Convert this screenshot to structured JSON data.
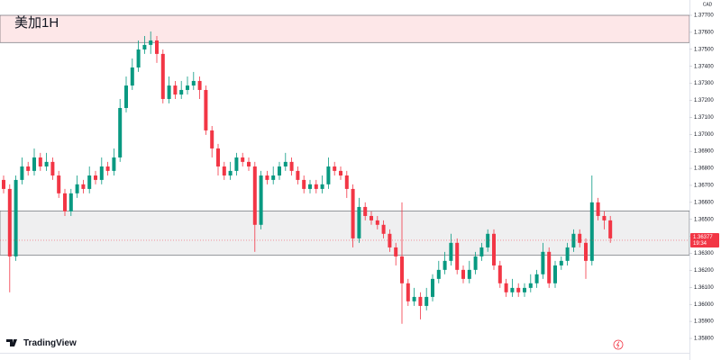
{
  "chart_data": {
    "type": "candlestick",
    "title": "美加1H",
    "brand": "TradingView",
    "currency": "CAD",
    "up_color": "#089981",
    "down_color": "#f23645",
    "ylim": [
      1.35673,
      1.3779
    ],
    "yticks": [
      {
        "value": 1.358,
        "label": "1.35800"
      },
      {
        "value": 1.359,
        "label": "1.35900"
      },
      {
        "value": 1.36,
        "label": "1.36000"
      },
      {
        "value": 1.361,
        "label": "1.36100"
      },
      {
        "value": 1.362,
        "label": "1.36200"
      },
      {
        "value": 1.363,
        "label": "1.36300"
      },
      {
        "value": 1.364,
        "label": "1.36400"
      },
      {
        "value": 1.365,
        "label": "1.36500"
      },
      {
        "value": 1.366,
        "label": "1.36600"
      },
      {
        "value": 1.367,
        "label": "1.36700"
      },
      {
        "value": 1.368,
        "label": "1.36800"
      },
      {
        "value": 1.369,
        "label": "1.36900"
      },
      {
        "value": 1.37,
        "label": "1.37000"
      },
      {
        "value": 1.371,
        "label": "1.37100"
      },
      {
        "value": 1.372,
        "label": "1.37200"
      },
      {
        "value": 1.373,
        "label": "1.37300"
      },
      {
        "value": 1.374,
        "label": "1.37400"
      },
      {
        "value": 1.375,
        "label": "1.37500"
      },
      {
        "value": 1.376,
        "label": "1.37600"
      },
      {
        "value": 1.377,
        "label": "1.37700"
      }
    ],
    "zones": [
      {
        "ylim": [
          1.3754,
          1.377
        ],
        "color": "#f23645"
      },
      {
        "ylim": [
          1.3629,
          1.3655
        ],
        "color": "#787b86"
      }
    ],
    "last_price": 1.36377,
    "countdown": "19:34",
    "open": [
      1.36732,
      1.36679,
      1.36282,
      1.36732,
      1.36811,
      1.36785,
      1.36864,
      1.36811,
      1.36838,
      1.36758,
      1.36653,
      1.36547,
      1.36653,
      1.36706,
      1.36679,
      1.36758,
      1.36732,
      1.36811,
      1.36785,
      1.36864,
      1.37155,
      1.37287,
      1.37393,
      1.37499,
      1.37526,
      1.37552,
      1.37473,
      1.37208,
      1.37287,
      1.37234,
      1.37261,
      1.37287,
      1.37314,
      1.37261,
      1.37023,
      1.36917,
      1.36811,
      1.36758,
      1.36785,
      1.36864,
      1.36838,
      1.36811,
      1.36468,
      1.36758,
      1.36732,
      1.36758,
      1.36811,
      1.36838,
      1.36785,
      1.36732,
      1.36679,
      1.36706,
      1.36679,
      1.36706,
      1.36811,
      1.36785,
      1.36758,
      1.36679,
      1.36388,
      1.36573,
      1.3652,
      1.36494,
      1.36468,
      1.36415,
      1.36335,
      1.36282,
      1.36124,
      1.36018,
      1.36044,
      1.35991,
      1.36044,
      1.3615,
      1.36203,
      1.36256,
      1.36362,
      1.36203,
      1.3615,
      1.36203,
      1.36282,
      1.36335,
      1.36415,
      1.36229,
      1.36124,
      1.36071,
      1.36097,
      1.36071,
      1.36097,
      1.36124,
      1.36177,
      1.36309,
      1.36124,
      1.36229,
      1.36256,
      1.36335,
      1.36415,
      1.36362,
      1.36256,
      1.366,
      1.3652,
      1.36494
    ],
    "high": [
      1.36758,
      1.36706,
      1.36758,
      1.36864,
      1.36838,
      1.36917,
      1.36891,
      1.36891,
      1.36864,
      1.36785,
      1.36679,
      1.36679,
      1.36758,
      1.36732,
      1.36811,
      1.36785,
      1.36864,
      1.36838,
      1.36917,
      1.37208,
      1.3734,
      1.37446,
      1.37552,
      1.37578,
      1.37605,
      1.37578,
      1.37499,
      1.3734,
      1.37314,
      1.37314,
      1.3734,
      1.37367,
      1.3734,
      1.37287,
      1.37049,
      1.36944,
      1.36838,
      1.36838,
      1.36891,
      1.36891,
      1.36864,
      1.36838,
      1.36785,
      1.36785,
      1.36811,
      1.36838,
      1.36891,
      1.36864,
      1.36811,
      1.36758,
      1.36732,
      1.36732,
      1.36758,
      1.36864,
      1.36838,
      1.36811,
      1.36785,
      1.36706,
      1.36626,
      1.366,
      1.36547,
      1.3652,
      1.36494,
      1.36441,
      1.36362,
      1.366,
      1.3615,
      1.36097,
      1.36071,
      1.36097,
      1.36177,
      1.36256,
      1.36309,
      1.36415,
      1.36388,
      1.36229,
      1.36256,
      1.36309,
      1.36362,
      1.36441,
      1.36441,
      1.36256,
      1.3615,
      1.3615,
      1.36124,
      1.36124,
      1.36177,
      1.36203,
      1.36362,
      1.36335,
      1.36256,
      1.36282,
      1.36362,
      1.36441,
      1.36441,
      1.36388,
      1.36758,
      1.36626,
      1.36547,
      1.3652
    ],
    "low": [
      1.36653,
      1.36071,
      1.36256,
      1.36706,
      1.36758,
      1.36758,
      1.36785,
      1.36785,
      1.36732,
      1.36626,
      1.3652,
      1.3652,
      1.36626,
      1.36653,
      1.36653,
      1.36706,
      1.36706,
      1.36758,
      1.36758,
      1.36838,
      1.37129,
      1.37261,
      1.37367,
      1.37473,
      1.37473,
      1.3742,
      1.37182,
      1.37182,
      1.37208,
      1.37208,
      1.37234,
      1.37261,
      1.37208,
      1.36997,
      1.36864,
      1.36758,
      1.36732,
      1.36732,
      1.36758,
      1.36811,
      1.36785,
      1.36309,
      1.36441,
      1.36706,
      1.36706,
      1.36732,
      1.36785,
      1.36758,
      1.36706,
      1.36653,
      1.36653,
      1.36653,
      1.36653,
      1.36679,
      1.36758,
      1.36732,
      1.36626,
      1.36335,
      1.36362,
      1.36494,
      1.36468,
      1.36441,
      1.36388,
      1.36309,
      1.36229,
      1.35886,
      1.35991,
      1.35991,
      1.35912,
      1.35965,
      1.36018,
      1.36124,
      1.36177,
      1.36229,
      1.36177,
      1.36124,
      1.36124,
      1.36177,
      1.36256,
      1.36309,
      1.36203,
      1.36097,
      1.36044,
      1.36044,
      1.36044,
      1.36044,
      1.36071,
      1.36097,
      1.3615,
      1.36097,
      1.36097,
      1.36203,
      1.36229,
      1.36309,
      1.36335,
      1.3615,
      1.36229,
      1.36494,
      1.36441,
      1.36362
    ],
    "close": [
      1.36679,
      1.36282,
      1.36732,
      1.36811,
      1.36785,
      1.36864,
      1.36811,
      1.36838,
      1.36758,
      1.36653,
      1.36547,
      1.36653,
      1.36706,
      1.36679,
      1.36758,
      1.36732,
      1.36811,
      1.36785,
      1.36864,
      1.37155,
      1.37287,
      1.37393,
      1.37499,
      1.37526,
      1.37552,
      1.37473,
      1.37208,
      1.37287,
      1.37234,
      1.37261,
      1.37287,
      1.37314,
      1.37261,
      1.37023,
      1.36917,
      1.36811,
      1.36758,
      1.36785,
      1.36864,
      1.36838,
      1.36811,
      1.36468,
      1.36758,
      1.36732,
      1.36758,
      1.36811,
      1.36838,
      1.36785,
      1.36732,
      1.36679,
      1.36706,
      1.36679,
      1.36706,
      1.36811,
      1.36785,
      1.36758,
      1.36679,
      1.36388,
      1.36573,
      1.3652,
      1.36494,
      1.36468,
      1.36415,
      1.36335,
      1.36282,
      1.36124,
      1.36018,
      1.36044,
      1.35991,
      1.36044,
      1.3615,
      1.36203,
      1.36256,
      1.36362,
      1.36203,
      1.3615,
      1.36203,
      1.36282,
      1.36335,
      1.36415,
      1.36229,
      1.36124,
      1.36071,
      1.36097,
      1.36071,
      1.36097,
      1.36124,
      1.36177,
      1.36309,
      1.36124,
      1.36229,
      1.36256,
      1.36335,
      1.36415,
      1.36362,
      1.36256,
      1.366,
      1.3652,
      1.36494,
      1.36388
    ]
  }
}
